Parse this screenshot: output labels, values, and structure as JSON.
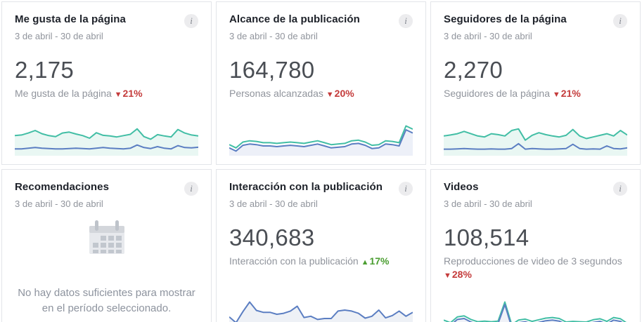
{
  "colors": {
    "accent_teal": "#42bea5",
    "accent_blue": "#5b7ec2",
    "fill_mint": "#e9f7f3",
    "fill_lavender": "#edf0f8",
    "fill_gray": "#eef1f6",
    "fill_faint_lavender": "#f0f2f8",
    "delta_down_red": "#c43b3b",
    "delta_up_green": "#4b9e31"
  },
  "info_icon_glyph": "i",
  "cards": [
    {
      "title": "Me gusta de la página",
      "date_range": "3 de abril - 30 de abril",
      "value": "2,175",
      "metric_label": "Me gusta de la página",
      "delta": {
        "direction": "down",
        "arrow": "▼",
        "text": "21%"
      },
      "chart": {
        "type": "line",
        "fill": {
          "series": 0,
          "color": "#e9f7f3"
        },
        "series": [
          {
            "name": "teal",
            "color": "#42bea5",
            "values": [
              58,
              60,
              66,
              74,
              64,
              58,
              55,
              66,
              69,
              63,
              58,
              50,
              67,
              59,
              57,
              54,
              58,
              62,
              79,
              55,
              47,
              61,
              57,
              54,
              77,
              66,
              60,
              57
            ]
          },
          {
            "name": "blue",
            "color": "#5b7ec2",
            "values": [
              17,
              17,
              19,
              21,
              19,
              18,
              17,
              17,
              18,
              19,
              18,
              17,
              19,
              21,
              19,
              18,
              17,
              19,
              29,
              21,
              18,
              24,
              19,
              17,
              27,
              21,
              20,
              22
            ]
          }
        ]
      }
    },
    {
      "title": "Alcance de la publicación",
      "date_range": "3 de abril - 30 de abril",
      "value": "164,780",
      "metric_label": "Personas alcanzadas",
      "delta": {
        "direction": "down",
        "arrow": "▼",
        "text": "20%"
      },
      "chart": {
        "type": "line",
        "fill": {
          "series": 1,
          "color": "#edf0f8"
        },
        "series": [
          {
            "name": "teal",
            "color": "#42bea5",
            "values": [
              30,
              20,
              38,
              42,
              40,
              36,
              36,
              34,
              36,
              38,
              36,
              34,
              38,
              42,
              36,
              30,
              32,
              34,
              42,
              44,
              38,
              28,
              30,
              42,
              40,
              36,
              88,
              78
            ]
          },
          {
            "name": "blue",
            "color": "#5b7ec2",
            "values": [
              20,
              10,
              28,
              32,
              30,
              26,
              26,
              24,
              26,
              28,
              26,
              24,
              28,
              32,
              26,
              20,
              22,
              24,
              32,
              34,
              28,
              18,
              20,
              32,
              30,
              26,
              76,
              66
            ]
          }
        ]
      }
    },
    {
      "title": "Seguidores de la página",
      "date_range": "3 de abril - 30 de abril",
      "value": "2,270",
      "metric_label": "Seguidores de la página",
      "delta": {
        "direction": "down",
        "arrow": "▼",
        "text": "21%"
      },
      "chart": {
        "type": "line",
        "fill": {
          "series": 0,
          "color": "#e9f7f3"
        },
        "series": [
          {
            "name": "teal",
            "color": "#42bea5",
            "values": [
              57,
              60,
              64,
              71,
              64,
              57,
              54,
              64,
              61,
              57,
              74,
              79,
              44,
              59,
              67,
              61,
              57,
              54,
              59,
              77,
              57,
              49,
              54,
              59,
              64,
              57,
              74,
              60
            ]
          },
          {
            "name": "blue",
            "color": "#5b7ec2",
            "values": [
              16,
              16,
              17,
              18,
              17,
              16,
              16,
              17,
              16,
              16,
              18,
              33,
              16,
              18,
              17,
              16,
              16,
              17,
              18,
              31,
              18,
              16,
              17,
              16,
              26,
              18,
              17,
              20
            ]
          }
        ]
      }
    },
    {
      "title": "Recomendaciones",
      "date_range": "3 de abril - 30 de abril",
      "no_data_message": "No hay datos suficientes para mostrar en el período seleccionado."
    },
    {
      "title": "Interacción con la publicación",
      "date_range": "3 de abril - 30 de abril",
      "value": "340,683",
      "metric_label": "Interacción con la publicación",
      "delta": {
        "direction": "up",
        "arrow": "▲",
        "text": "17%"
      },
      "chart": {
        "type": "line",
        "fill": {
          "series": 0,
          "color": "#eef1f6"
        },
        "series": [
          {
            "name": "blue",
            "color": "#5b7ec2",
            "values": [
              42,
              24,
              58,
              88,
              62,
              56,
              56,
              50,
              53,
              60,
              75,
              40,
              44,
              34,
              37,
              37,
              60,
              63,
              60,
              53,
              38,
              44,
              63,
              39,
              46,
              60,
              44,
              56
            ]
          }
        ]
      }
    },
    {
      "title": "Videos",
      "date_range": "3 de abril - 30 de abril",
      "value": "108,514",
      "metric_label": "Reproducciones de video de 3 segundos",
      "delta": {
        "direction": "down",
        "arrow": "▼",
        "text": "28%"
      },
      "delta_on_new_line": true,
      "chart": {
        "type": "line",
        "fill": {
          "series": 1,
          "color": "#f0f2f8"
        },
        "series": [
          {
            "name": "teal",
            "color": "#42bea5",
            "values": [
              32,
              24,
              42,
              45,
              34,
              27,
              29,
              27,
              29,
              88,
              18,
              32,
              35,
              28,
              33,
              38,
              40,
              37,
              26,
              28,
              27,
              26,
              33,
              36,
              28,
              40,
              36,
              22
            ]
          },
          {
            "name": "blue",
            "color": "#5b7ec2",
            "values": [
              24,
              16,
              34,
              37,
              26,
              19,
              21,
              19,
              21,
              80,
              10,
              24,
              27,
              20,
              25,
              30,
              32,
              29,
              18,
              20,
              19,
              18,
              25,
              28,
              20,
              32,
              28,
              14
            ]
          }
        ]
      }
    }
  ]
}
